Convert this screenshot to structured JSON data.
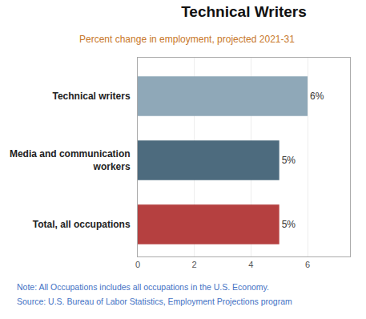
{
  "chart_data": {
    "type": "bar",
    "orientation": "horizontal",
    "title": "Technical Writers",
    "subtitle": "Percent change in employment, projected 2021-31",
    "categories": [
      "Technical writers",
      "Media and communication\nworkers",
      "Total, all occupations"
    ],
    "values": [
      6,
      5,
      5
    ],
    "value_labels": [
      "6%",
      "5%",
      "5%"
    ],
    "data_labels": true,
    "colors": [
      "#8fa8b8",
      "#4d6b7e",
      "#b54040"
    ],
    "xlim": [
      0,
      7.5
    ],
    "xticks": [
      0,
      2,
      4,
      6
    ],
    "grid": true,
    "annotations": [
      "Note: All Occupations includes all occupations in the U.S. Economy.",
      "Source: U.S. Bureau of Labor Statistics, Employment Projections program"
    ]
  }
}
